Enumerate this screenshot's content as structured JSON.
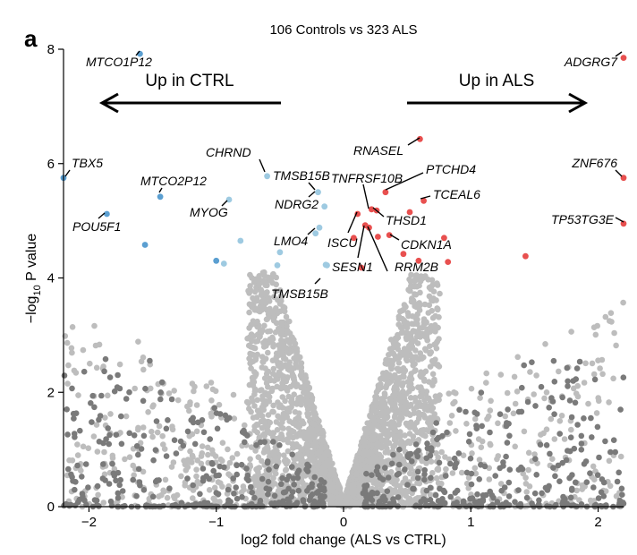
{
  "panel_label": "a",
  "chart_data": {
    "type": "scatter",
    "title": "106 Controls vs 323 ALS",
    "xlabel": "log2 fold change (ALS vs CTRL)",
    "ylabel": "−log10 P value",
    "ylabel_parts": {
      "prefix": "−log",
      "sub": "10",
      "suffix": " P value"
    },
    "xlim": [
      -2.2,
      2.2
    ],
    "ylim": [
      0,
      8
    ],
    "xticks": [
      -2,
      -1,
      0,
      1,
      2
    ],
    "yticks": [
      0,
      2,
      4,
      6,
      8
    ],
    "annotations": {
      "left": "Up in CTRL",
      "right": "Up in ALS"
    },
    "colors": {
      "background_points": "#bdbdbd",
      "dark_points": "#7a7a7a",
      "down_strong": "#5b9fd1",
      "down": "#9ecae1",
      "up": "#e8504f"
    },
    "labeled_genes": [
      {
        "gene": "MTCO1P12",
        "x": -1.6,
        "y": 7.92,
        "color": "#5b9fd1"
      },
      {
        "gene": "ADGRG7",
        "x": 2.2,
        "y": 7.85,
        "color": "#e8504f"
      },
      {
        "gene": "TBX5",
        "x": -2.2,
        "y": 5.75,
        "color": "#5b9fd1"
      },
      {
        "gene": "ZNF676",
        "x": 2.2,
        "y": 5.75,
        "color": "#e8504f"
      },
      {
        "gene": "MTCO2P12",
        "x": -1.44,
        "y": 5.42,
        "color": "#5b9fd1"
      },
      {
        "gene": "POU5F1",
        "x": -1.86,
        "y": 5.12,
        "color": "#5b9fd1"
      },
      {
        "gene": "MYOG",
        "x": -0.9,
        "y": 5.37,
        "color": "#9ecae1"
      },
      {
        "gene": "CHRND",
        "x": -0.6,
        "y": 5.78,
        "color": "#9ecae1"
      },
      {
        "gene": "TMSB15B",
        "x": -0.2,
        "y": 5.5,
        "color": "#9ecae1"
      },
      {
        "gene": "NDRG2",
        "x": -0.15,
        "y": 5.25,
        "color": "#9ecae1"
      },
      {
        "gene": "LMO4",
        "x": -0.19,
        "y": 4.88,
        "color": "#9ecae1"
      },
      {
        "gene": "TMSB15B",
        "x": -0.14,
        "y": 4.23,
        "color": "#9ecae1"
      },
      {
        "gene": "TP53TG3E",
        "x": 2.2,
        "y": 4.95,
        "color": "#e8504f"
      },
      {
        "gene": "RNASEL",
        "x": 0.6,
        "y": 6.43,
        "color": "#e8504f"
      },
      {
        "gene": "PTCHD4",
        "x": 0.33,
        "y": 5.5,
        "color": "#e8504f"
      },
      {
        "gene": "TNFRSF10B",
        "x": 0.22,
        "y": 5.2,
        "color": "#e8504f"
      },
      {
        "gene": "TCEAL6",
        "x": 0.63,
        "y": 5.35,
        "color": "#e8504f"
      },
      {
        "gene": "THSD1",
        "x": 0.26,
        "y": 5.18,
        "color": "#e8504f"
      },
      {
        "gene": "ISCU",
        "x": 0.11,
        "y": 5.12,
        "color": "#e8504f"
      },
      {
        "gene": "CDKN1A",
        "x": 0.36,
        "y": 4.75,
        "color": "#e8504f"
      },
      {
        "gene": "SESN1",
        "x": 0.17,
        "y": 4.92,
        "color": "#e8504f"
      },
      {
        "gene": "RRM2B",
        "x": 0.2,
        "y": 4.88,
        "color": "#e8504f"
      }
    ],
    "other_significant": [
      {
        "x": -1.56,
        "y": 4.58,
        "color": "#5b9fd1"
      },
      {
        "x": -1.0,
        "y": 4.3,
        "color": "#5b9fd1"
      },
      {
        "x": -0.81,
        "y": 4.65,
        "color": "#9ecae1"
      },
      {
        "x": -0.94,
        "y": 4.25,
        "color": "#9ecae1"
      },
      {
        "x": -0.5,
        "y": 4.45,
        "color": "#9ecae1"
      },
      {
        "x": -0.52,
        "y": 4.22,
        "color": "#9ecae1"
      },
      {
        "x": -0.22,
        "y": 4.78,
        "color": "#9ecae1"
      },
      {
        "x": -0.13,
        "y": 4.22,
        "color": "#9ecae1"
      },
      {
        "x": 0.08,
        "y": 4.7,
        "color": "#e8504f"
      },
      {
        "x": 0.27,
        "y": 4.72,
        "color": "#e8504f"
      },
      {
        "x": 0.47,
        "y": 4.42,
        "color": "#e8504f"
      },
      {
        "x": 0.52,
        "y": 5.15,
        "color": "#e8504f"
      },
      {
        "x": 0.59,
        "y": 4.3,
        "color": "#e8504f"
      },
      {
        "x": 0.79,
        "y": 4.7,
        "color": "#e8504f"
      },
      {
        "x": 0.82,
        "y": 4.28,
        "color": "#e8504f"
      },
      {
        "x": 1.43,
        "y": 4.38,
        "color": "#e8504f"
      },
      {
        "x": 0.14,
        "y": 4.18,
        "color": "#e8504f"
      }
    ],
    "background_description": "thousands of non-significant genes forming a volcano shape (grey), with darker grey points at the flanks"
  }
}
